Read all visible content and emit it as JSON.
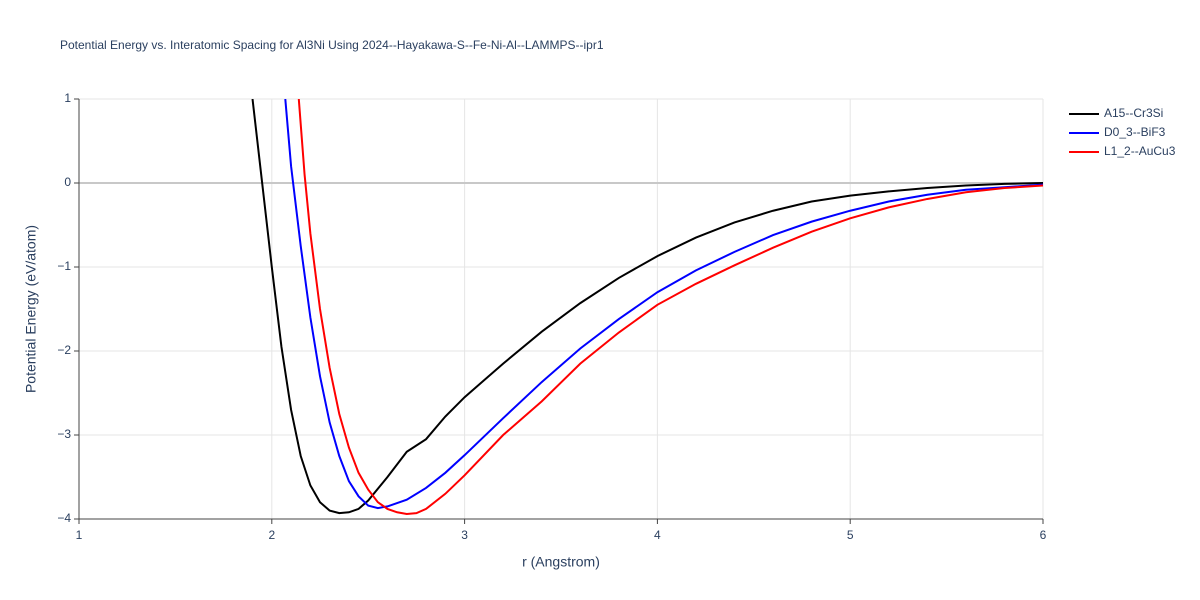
{
  "chart_data": {
    "type": "line",
    "title": "Potential Energy vs. Interatomic Spacing for Al3Ni Using 2024--Hayakawa-S--Fe-Ni-Al--LAMMPS--ipr1",
    "x_label": "r (Angstrom)",
    "y_label": "Potential Energy (eV/atom)",
    "xlim": [
      1,
      6
    ],
    "ylim": [
      -4,
      1
    ],
    "xticks": [
      1,
      2,
      3,
      4,
      5,
      6
    ],
    "yticks": [
      {
        "value": -4,
        "label": "−4"
      },
      {
        "value": -3,
        "label": "−3"
      },
      {
        "value": -2,
        "label": "−2"
      },
      {
        "value": -1,
        "label": "−1"
      },
      0,
      1
    ],
    "grid": true,
    "legend": "right",
    "series": [
      {
        "name": "A15--Cr3Si",
        "color": "#000000",
        "x": [
          1.9,
          1.95,
          2.0,
          2.05,
          2.1,
          2.15,
          2.2,
          2.25,
          2.3,
          2.35,
          2.4,
          2.45,
          2.5,
          2.6,
          2.7,
          2.8,
          2.9,
          3.0,
          3.2,
          3.4,
          3.6,
          3.8,
          4.0,
          4.2,
          4.4,
          4.6,
          4.8,
          5.0,
          5.2,
          5.4,
          5.6,
          5.8,
          6.0
        ],
        "values": [
          1.0,
          0.0,
          -1.0,
          -1.95,
          -2.7,
          -3.25,
          -3.6,
          -3.8,
          -3.9,
          -3.93,
          -3.92,
          -3.88,
          -3.78,
          -3.5,
          -3.2,
          -3.05,
          -2.78,
          -2.55,
          -2.15,
          -1.77,
          -1.43,
          -1.13,
          -0.87,
          -0.65,
          -0.47,
          -0.33,
          -0.22,
          -0.15,
          -0.1,
          -0.06,
          -0.03,
          -0.01,
          0.0
        ]
      },
      {
        "name": "D0_3--BiF3",
        "color": "#0000ff",
        "x": [
          2.07,
          2.1,
          2.15,
          2.2,
          2.25,
          2.3,
          2.35,
          2.4,
          2.45,
          2.5,
          2.55,
          2.6,
          2.7,
          2.8,
          2.9,
          3.0,
          3.2,
          3.4,
          3.6,
          3.8,
          4.0,
          4.2,
          4.4,
          4.6,
          4.8,
          5.0,
          5.2,
          5.4,
          5.6,
          5.8,
          6.0
        ],
        "values": [
          1.0,
          0.2,
          -0.75,
          -1.6,
          -2.3,
          -2.85,
          -3.25,
          -3.55,
          -3.73,
          -3.84,
          -3.87,
          -3.85,
          -3.77,
          -3.63,
          -3.45,
          -3.24,
          -2.8,
          -2.37,
          -1.97,
          -1.62,
          -1.3,
          -1.04,
          -0.82,
          -0.62,
          -0.46,
          -0.33,
          -0.22,
          -0.14,
          -0.08,
          -0.05,
          -0.02
        ]
      },
      {
        "name": "L1_2--AuCu3",
        "color": "#ff0000",
        "x": [
          2.14,
          2.17,
          2.2,
          2.25,
          2.3,
          2.35,
          2.4,
          2.45,
          2.5,
          2.55,
          2.6,
          2.65,
          2.7,
          2.75,
          2.8,
          2.9,
          3.0,
          3.2,
          3.4,
          3.6,
          3.8,
          4.0,
          4.2,
          4.4,
          4.6,
          4.8,
          5.0,
          5.2,
          5.4,
          5.6,
          5.8,
          6.0
        ],
        "values": [
          1.0,
          0.1,
          -0.6,
          -1.5,
          -2.2,
          -2.75,
          -3.15,
          -3.45,
          -3.65,
          -3.8,
          -3.88,
          -3.92,
          -3.94,
          -3.93,
          -3.88,
          -3.7,
          -3.48,
          -3.0,
          -2.6,
          -2.15,
          -1.78,
          -1.45,
          -1.2,
          -0.98,
          -0.77,
          -0.58,
          -0.42,
          -0.29,
          -0.19,
          -0.11,
          -0.06,
          -0.03
        ]
      }
    ]
  }
}
